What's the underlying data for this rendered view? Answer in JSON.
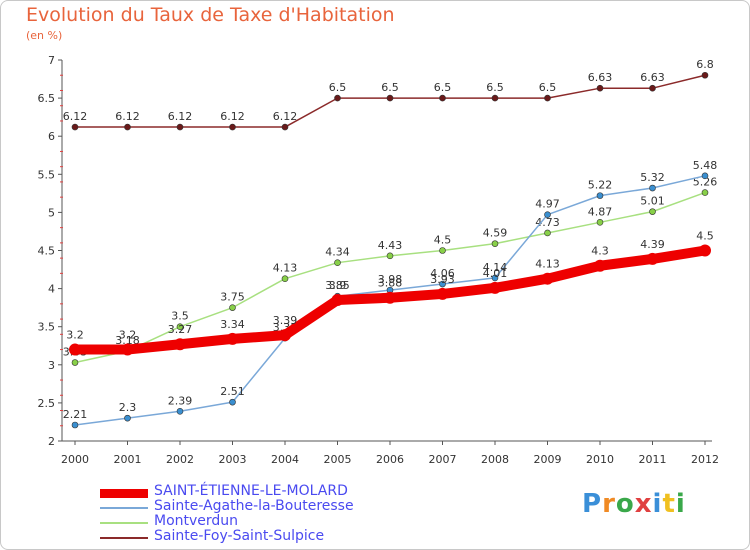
{
  "title": "Evolution du Taux de Taxe d'Habitation",
  "subtitle": "(en %)",
  "logo": {
    "text": "Proxiti",
    "letters": [
      "P",
      "r",
      "o",
      "x",
      "i",
      "t",
      "i"
    ],
    "colors": [
      "#3a8fd8",
      "#f08a24",
      "#3aa84a",
      "#e04040",
      "#3a8fd8",
      "#f0c020",
      "#3aa84a"
    ]
  },
  "chart_data": {
    "type": "line",
    "title": "Evolution du Taux de Taxe d'Habitation",
    "ylabel": "(en %)",
    "xlabel": "",
    "ylim": [
      2,
      7
    ],
    "yticks": [
      "2",
      "2.5",
      "3",
      "3.5",
      "4",
      "4.5",
      "5",
      "5.5",
      "6",
      "6.5",
      "7"
    ],
    "categories": [
      "2000",
      "2001",
      "2002",
      "2003",
      "2004",
      "2005",
      "2006",
      "2007",
      "2008",
      "2009",
      "2010",
      "2011",
      "2012"
    ],
    "series": [
      {
        "name": "SAINT-ÉTIENNE-LE-MOLARD",
        "color": "#ee0000",
        "marker": "#ee0000",
        "values": [
          3.2,
          3.2,
          3.27,
          3.34,
          3.39,
          3.85,
          3.88,
          3.93,
          4.01,
          4.13,
          4.3,
          4.39,
          4.5
        ],
        "labels": [
          "3.2",
          "3.2",
          "3.27",
          "3.34",
          "3.39",
          "3.85",
          "3.88",
          "3.93",
          "4.01",
          "4.13",
          "4.3",
          "4.39",
          "4.5"
        ]
      },
      {
        "name": "Sainte-Agathe-la-Bouteresse",
        "color": "#7aa8d8",
        "marker": "#3a8fd0",
        "values": [
          2.21,
          2.3,
          2.39,
          2.51,
          3.35,
          3.9,
          3.98,
          4.06,
          4.14,
          4.97,
          5.22,
          5.32,
          5.48
        ],
        "labels": [
          "2.21",
          "2.3",
          "2.39",
          "2.51",
          "3.35",
          "3.9",
          "3.98",
          "4.06",
          "4.14",
          "4.97",
          "5.22",
          "5.32",
          "5.48"
        ]
      },
      {
        "name": "Montverdun",
        "color": "#a8e080",
        "marker": "#88d048",
        "values": [
          3.03,
          3.18,
          3.5,
          3.75,
          4.13,
          4.34,
          4.43,
          4.5,
          4.59,
          4.73,
          4.87,
          5.01,
          5.26
        ],
        "labels": [
          "3.03",
          "3.18",
          "3.5",
          "3.75",
          "4.13",
          "4.34",
          "4.43",
          "4.5",
          "4.59",
          "4.73",
          "4.87",
          "5.01",
          "5.26"
        ]
      },
      {
        "name": "Sainte-Foy-Saint-Sulpice",
        "color": "#8b2a2a",
        "marker": "#6a1a1a",
        "values": [
          6.12,
          6.12,
          6.12,
          6.12,
          6.12,
          6.5,
          6.5,
          6.5,
          6.5,
          6.5,
          6.63,
          6.63,
          6.8
        ],
        "labels": [
          "6.12",
          "6.12",
          "6.12",
          "6.12",
          "6.12",
          "6.5",
          "6.5",
          "6.5",
          "6.5",
          "6.5",
          "6.63",
          "6.63",
          "6.8"
        ]
      }
    ],
    "legend": "bottom-left",
    "grid": false
  }
}
